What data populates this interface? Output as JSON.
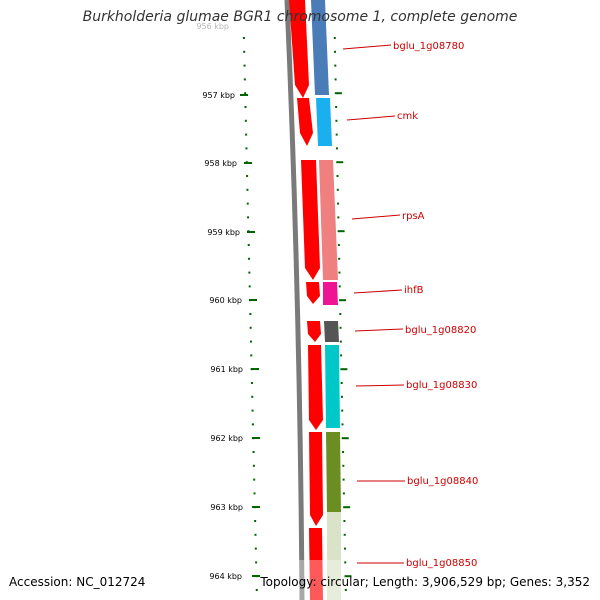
{
  "title": "Burkholderia glumae BGR1 chromosome 1, complete genome",
  "accession": "Accession: NC_012724",
  "topology": "Topology: circular; Length: 3,906,529 bp; Genes: 3,352",
  "axis_ticks": [
    "956 kbp",
    "957 kbp",
    "958 kbp",
    "959 kbp",
    "960 kbp",
    "961 kbp",
    "962 kbp",
    "963 kbp",
    "964 kbp"
  ],
  "genes": [
    {
      "name": "bglu_1g08780",
      "color": "#4a7cb8"
    },
    {
      "name": "cmk",
      "color": "#1ab0f0"
    },
    {
      "name": "rpsA",
      "color": "#f08080"
    },
    {
      "name": "ihfB",
      "color": "#ee1493"
    },
    {
      "name": "bglu_1g08820",
      "color": "#555555"
    },
    {
      "name": "bglu_1g08830",
      "color": "#00c8c8"
    },
    {
      "name": "bglu_1g08840",
      "color": "#6b8e23"
    },
    {
      "name": "bglu_1g08850",
      "color": "#6b8e23"
    }
  ],
  "colors": {
    "forward_strand": "#ff0000",
    "backbone": "#808080",
    "ticks": "#006400",
    "labels": "#cc0000"
  }
}
